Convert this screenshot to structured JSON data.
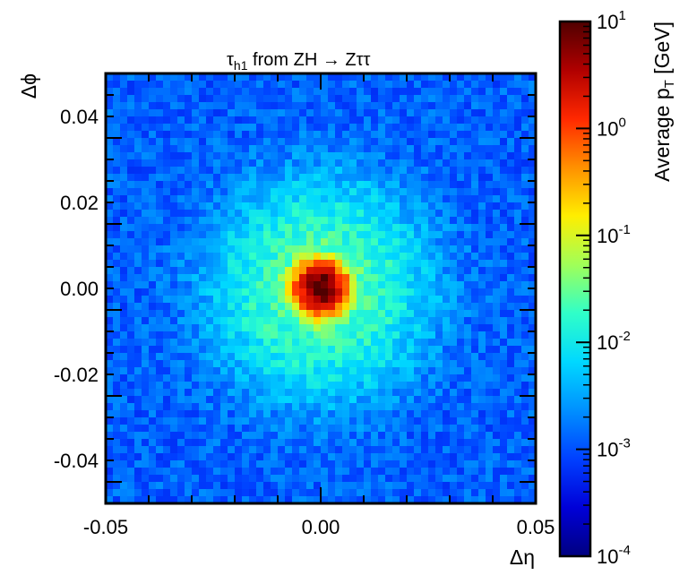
{
  "chart_data": {
    "type": "heatmap",
    "title": "τ",
    "title_subscript": "h1",
    "title_rest": " from ZH → Zττ",
    "xlabel": "Δη",
    "ylabel": "Δϕ",
    "xlim": [
      -0.05,
      0.05
    ],
    "ylim": [
      -0.05,
      0.05
    ],
    "xticks": [
      -0.05,
      0.0,
      0.05
    ],
    "xtick_labels": [
      "-0.05",
      "0.00",
      "0.05"
    ],
    "yticks": [
      -0.04,
      -0.02,
      0.0,
      0.02,
      0.04
    ],
    "ytick_labels": [
      "-0.04",
      "-0.02",
      "0.00",
      "0.02",
      "0.04"
    ],
    "grid": false,
    "bins": [
      60,
      60
    ],
    "distribution": {
      "center": [
        0.0,
        0.0
      ],
      "peak_value": 10,
      "core_width": 0.0025,
      "halo_width": 0.012,
      "halo_amplitude": 0.03,
      "background_level": 0.0012
    },
    "colorbar": {
      "label": "Average p",
      "label_subscript": "T",
      "label_unit": " [GeV]",
      "scale": "log",
      "range": [
        0.0001,
        10
      ],
      "tick_labels": [
        "10",
        "10",
        "10",
        "10",
        "10",
        "10"
      ],
      "tick_exponents": [
        "-4",
        "-3",
        "-2",
        "-1",
        "0",
        "1"
      ],
      "colormap": [
        "#000080",
        "#0000d8",
        "#0040ff",
        "#0090ff",
        "#00d8ff",
        "#30ffc8",
        "#a0ff58",
        "#ffee00",
        "#ff9000",
        "#ff2800",
        "#b00000",
        "#500000"
      ]
    }
  }
}
